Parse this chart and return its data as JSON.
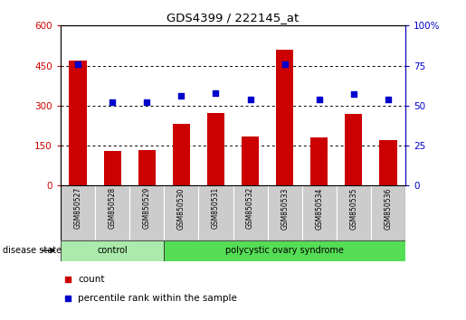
{
  "title": "GDS4399 / 222145_at",
  "samples": [
    "GSM850527",
    "GSM850528",
    "GSM850529",
    "GSM850530",
    "GSM850531",
    "GSM850532",
    "GSM850533",
    "GSM850534",
    "GSM850535",
    "GSM850536"
  ],
  "counts": [
    470,
    130,
    133,
    232,
    272,
    183,
    510,
    182,
    268,
    172
  ],
  "percentiles": [
    76,
    52,
    52,
    56,
    58,
    54,
    76,
    54,
    57,
    54
  ],
  "bar_color": "#cc0000",
  "dot_color": "#0000cc",
  "left_ylim": [
    0,
    600
  ],
  "right_ylim": [
    0,
    100
  ],
  "left_yticks": [
    0,
    150,
    300,
    450,
    600
  ],
  "right_yticks": [
    0,
    25,
    50,
    75,
    100
  ],
  "left_tick_labels": [
    "0",
    "150",
    "300",
    "450",
    "600"
  ],
  "right_tick_labels": [
    "0",
    "25",
    "50",
    "75",
    "100%"
  ],
  "groups": [
    {
      "label": "control",
      "start": 0,
      "end": 3,
      "color": "#aaeaaa"
    },
    {
      "label": "polycystic ovary syndrome",
      "start": 3,
      "end": 10,
      "color": "#55dd55"
    }
  ],
  "disease_state_label": "disease state",
  "legend_count_label": "count",
  "legend_percentile_label": "percentile rank within the sample",
  "bar_width": 0.5,
  "sample_box_color": "#cccccc",
  "spine_color": "#000000"
}
